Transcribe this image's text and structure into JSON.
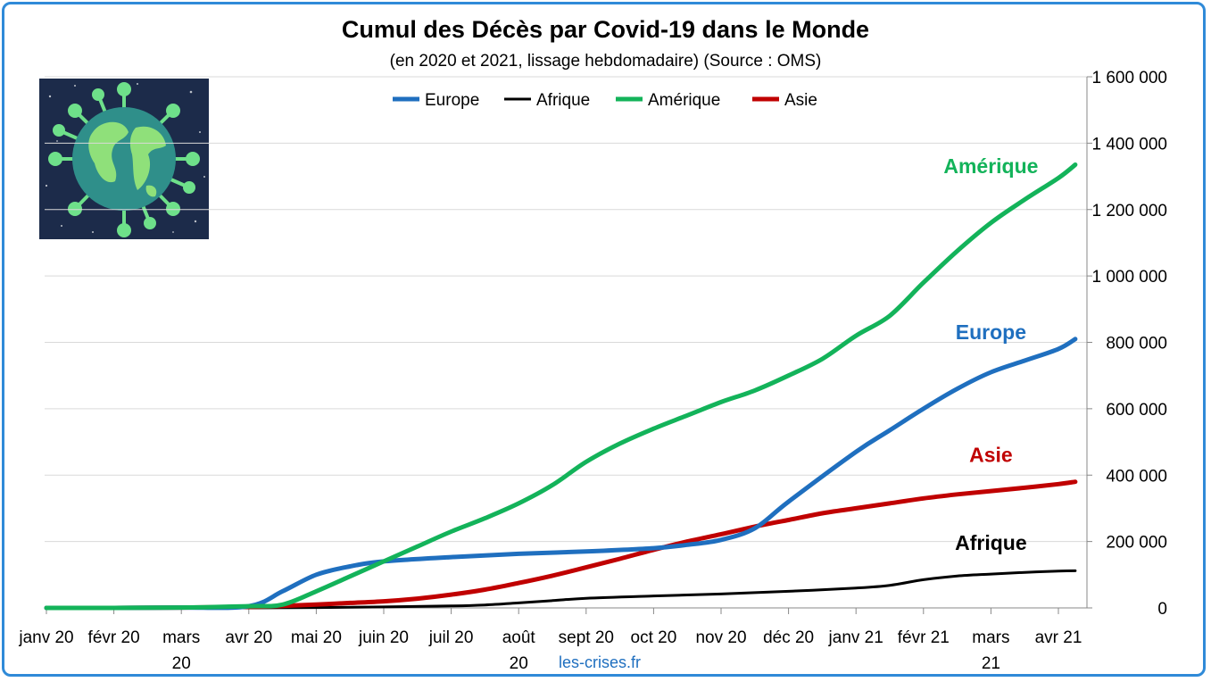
{
  "title": "Cumul des Décès par Covid-19 dans le Monde",
  "subtitle": "(en 2020 et 2021, lissage hebdomadaire) (Source : OMS)",
  "source_note": "les-crises.fr",
  "image": {
    "icon": "earth-virus-illustration"
  },
  "colors": {
    "Europe": "#1f6fbf",
    "Afrique": "#000000",
    "Amérique": "#13b35a",
    "Asie": "#c00000",
    "grid": "#d9d9d9",
    "frame": "#2f8ad8"
  },
  "chart_data": {
    "type": "line",
    "title": "Cumul des Décès par Covid-19 dans le Monde",
    "subtitle": "(en 2020 et 2021, lissage hebdomadaire) (Source : OMS)",
    "xlabel": "",
    "ylabel": "",
    "y_axis_side": "right",
    "ylim": [
      0,
      1600000
    ],
    "yticks": [
      0,
      200000,
      400000,
      600000,
      800000,
      1000000,
      1200000,
      1400000,
      1600000
    ],
    "ytick_labels": [
      "0",
      "200 000",
      "400 000",
      "600 000",
      "800 000",
      "1 000 000",
      "1 200 000",
      "1 400 000",
      "1 600 000"
    ],
    "xtick_labels": [
      [
        "janv 20"
      ],
      [
        "févr 20"
      ],
      [
        "mars",
        "20"
      ],
      [
        "avr 20"
      ],
      [
        "mai 20"
      ],
      [
        "juin 20"
      ],
      [
        "juil 20"
      ],
      [
        "août",
        "20"
      ],
      [
        "sept 20"
      ],
      [
        "oct 20"
      ],
      [
        "nov 20"
      ],
      [
        "déc 20"
      ],
      [
        "janv 21"
      ],
      [
        "févr 21"
      ],
      [
        "mars",
        "21"
      ],
      [
        "avr 21"
      ]
    ],
    "x_months": [
      "janv 20",
      "févr 20",
      "mars 20",
      "avr 20",
      "mai 20",
      "juin 20",
      "juil 20",
      "août 20",
      "sept 20",
      "oct 20",
      "nov 20",
      "déc 20",
      "janv 21",
      "févr 21",
      "mars 21",
      "avr 21"
    ],
    "grid": true,
    "legend": "top-center",
    "series": [
      {
        "name": "Europe",
        "label": "Europe",
        "color": "#1f6fbf",
        "x": [
          0,
          1,
          2,
          3,
          3.5,
          4,
          4.5,
          5,
          6,
          7,
          8,
          9,
          9.5,
          10,
          10.5,
          11,
          12,
          12.5,
          13,
          13.5,
          14,
          14.5,
          15,
          15.25
        ],
        "y": [
          0,
          0,
          1000,
          5000,
          50000,
          100000,
          125000,
          140000,
          153000,
          163000,
          170000,
          180000,
          190000,
          205000,
          240000,
          320000,
          470000,
          535000,
          600000,
          660000,
          710000,
          745000,
          780000,
          810000
        ]
      },
      {
        "name": "Afrique",
        "label": "Afrique",
        "color": "#000000",
        "x": [
          0,
          1,
          2,
          3,
          4,
          5,
          6,
          6.5,
          7,
          7.5,
          8,
          9,
          10,
          11,
          12,
          12.5,
          13,
          13.5,
          14,
          14.5,
          15,
          15.25
        ],
        "y": [
          0,
          0,
          0,
          0,
          1000,
          3000,
          6000,
          9000,
          15000,
          22000,
          29000,
          36000,
          42000,
          50000,
          60000,
          68000,
          85000,
          96000,
          102000,
          107000,
          111000,
          112000
        ]
      },
      {
        "name": "Amérique",
        "label": "Amérique",
        "color": "#13b35a",
        "x": [
          0,
          1,
          2,
          3,
          3.5,
          4,
          4.5,
          5,
          5.5,
          6,
          6.5,
          7,
          7.5,
          8,
          8.5,
          9,
          9.5,
          10,
          10.5,
          11,
          11.5,
          12,
          12.5,
          13,
          13.5,
          14,
          14.5,
          15,
          15.25
        ],
        "y": [
          0,
          0,
          1000,
          5000,
          10000,
          50000,
          95000,
          140000,
          185000,
          230000,
          270000,
          315000,
          370000,
          440000,
          495000,
          540000,
          580000,
          620000,
          655000,
          700000,
          750000,
          820000,
          880000,
          980000,
          1075000,
          1160000,
          1230000,
          1295000,
          1335000
        ]
      },
      {
        "name": "Asie",
        "label": "Asie",
        "color": "#c00000",
        "x": [
          0,
          1,
          2,
          3,
          3.5,
          4,
          4.5,
          5,
          5.5,
          6,
          6.5,
          7,
          7.5,
          8,
          8.5,
          9,
          9.5,
          10,
          10.5,
          11,
          11.5,
          12,
          12.5,
          13,
          13.5,
          14,
          14.5,
          15,
          15.25
        ],
        "y": [
          0,
          0,
          1000,
          3000,
          6000,
          10000,
          15000,
          20000,
          28000,
          40000,
          55000,
          75000,
          97000,
          122000,
          148000,
          175000,
          200000,
          222000,
          245000,
          265000,
          285000,
          300000,
          315000,
          330000,
          342000,
          352000,
          362000,
          373000,
          380000
        ]
      }
    ],
    "annotations": [
      {
        "text": "Amérique",
        "color": "#13b35a",
        "x": 14.0,
        "y": 1310000
      },
      {
        "text": "Europe",
        "color": "#1f6fbf",
        "x": 14.0,
        "y": 810000
      },
      {
        "text": "Asie",
        "color": "#c00000",
        "x": 14.0,
        "y": 440000
      },
      {
        "text": "Afrique",
        "color": "#000000",
        "x": 14.0,
        "y": 175000
      }
    ]
  }
}
